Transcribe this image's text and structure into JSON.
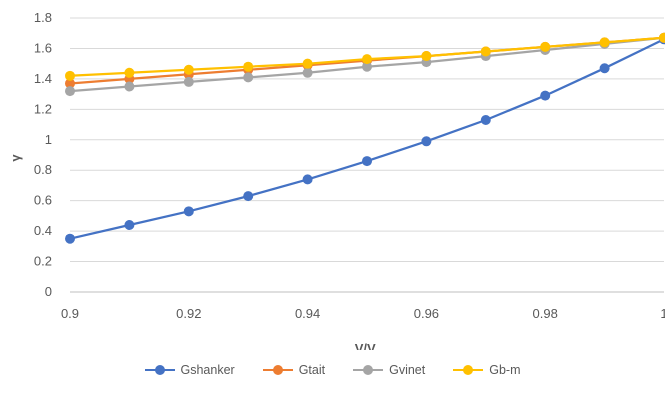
{
  "chart_data": {
    "type": "line",
    "xlabel": "V/V",
    "xlabel_sub": "0",
    "ylabel": "γ",
    "xlim": [
      0.9,
      1.0
    ],
    "ylim": [
      0,
      1.8
    ],
    "x_ticks": [
      "0.9",
      "0.92",
      "0.94",
      "0.96",
      "0.98",
      "1"
    ],
    "y_ticks": [
      "0",
      "0.2",
      "0.4",
      "0.6",
      "0.8",
      "1",
      "1.2",
      "1.4",
      "1.6",
      "1.8"
    ],
    "x": [
      0.9,
      0.91,
      0.92,
      0.93,
      0.94,
      0.95,
      0.96,
      0.97,
      0.98,
      0.99,
      1.0
    ],
    "grid": "horizontal",
    "legend_position": "bottom",
    "series": [
      {
        "name": "Gshanker",
        "color": "#4472C4",
        "values": [
          0.35,
          0.44,
          0.53,
          0.63,
          0.74,
          0.86,
          0.99,
          1.13,
          1.29,
          1.47,
          1.66
        ]
      },
      {
        "name": "Gtait",
        "color": "#ED7D31",
        "values": [
          1.37,
          1.4,
          1.43,
          1.46,
          1.49,
          1.52,
          1.55,
          1.58,
          1.61,
          1.64,
          1.67
        ]
      },
      {
        "name": "Gvinet",
        "color": "#A5A5A5",
        "values": [
          1.32,
          1.35,
          1.38,
          1.41,
          1.44,
          1.48,
          1.51,
          1.55,
          1.59,
          1.63,
          1.67
        ]
      },
      {
        "name": "Gb-m",
        "color": "#FFC000",
        "values": [
          1.42,
          1.44,
          1.46,
          1.48,
          1.5,
          1.53,
          1.55,
          1.58,
          1.61,
          1.64,
          1.67
        ]
      }
    ]
  }
}
